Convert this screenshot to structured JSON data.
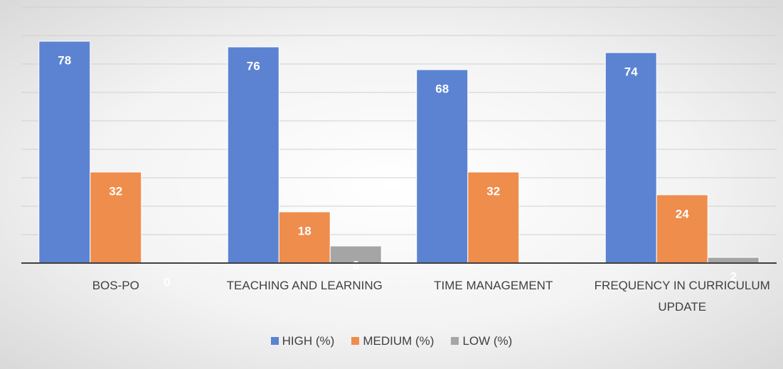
{
  "chart_data": {
    "type": "bar",
    "categories": [
      "BOS-PO",
      "TEACHING AND LEARNING",
      "TIME MANAGEMENT",
      "FREQUENCY IN CURRICULUM UPDATE"
    ],
    "series": [
      {
        "name": "HIGH (%)",
        "color": "#5b83d1",
        "values": [
          78,
          76,
          68,
          74
        ]
      },
      {
        "name": "MEDIUM (%)",
        "color": "#ee8d4c",
        "values": [
          32,
          18,
          32,
          24
        ]
      },
      {
        "name": "LOW (%)",
        "color": "#a5a5a5",
        "values": [
          0,
          6,
          null,
          2
        ]
      }
    ],
    "ylim": [
      0,
      90
    ],
    "yticks": [
      0,
      10,
      20,
      30,
      40,
      50,
      60,
      70,
      80,
      90
    ],
    "grid": true,
    "legend": "bottom"
  }
}
